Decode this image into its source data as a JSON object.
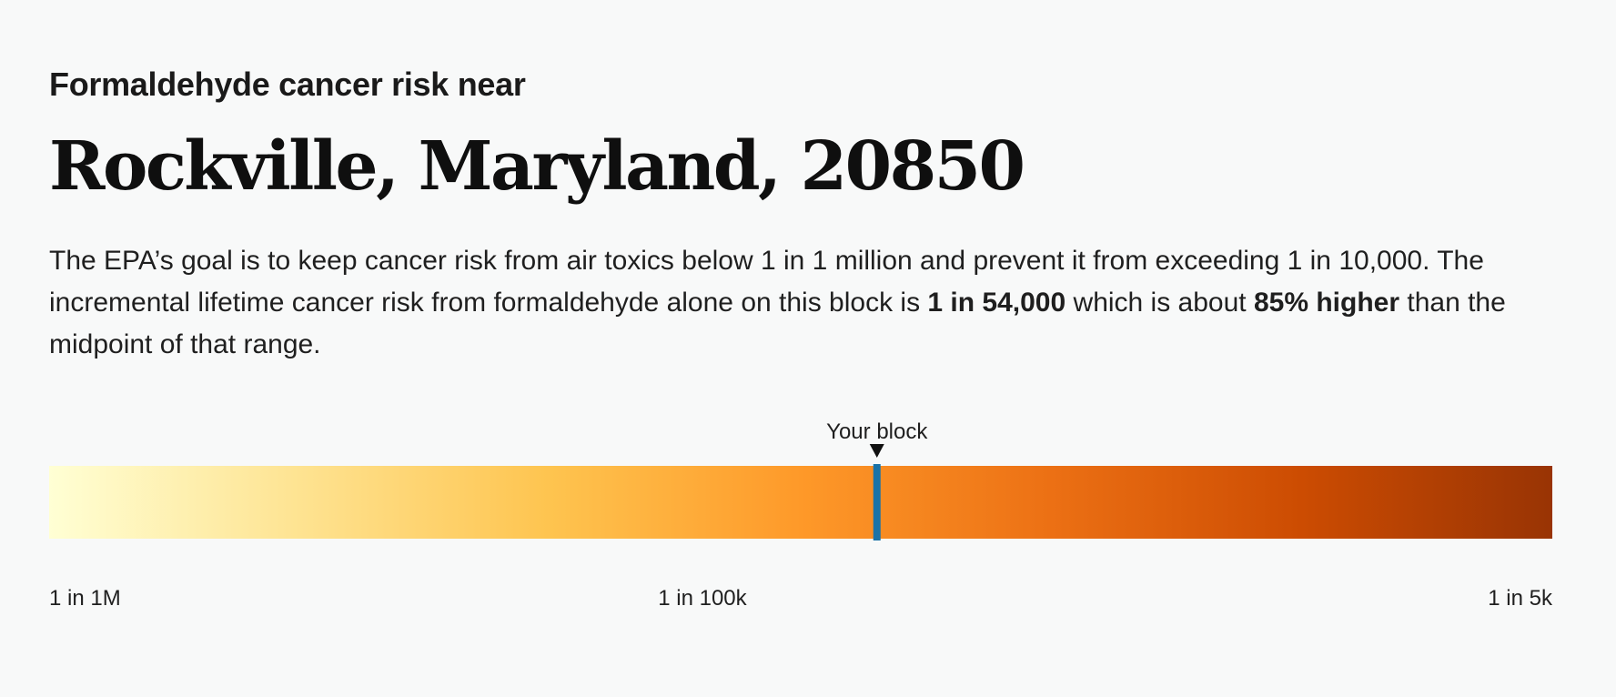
{
  "header": {
    "kicker": "Formaldehyde cancer risk near",
    "location": "Rockville, Maryland, 20850"
  },
  "description": {
    "part1": "The EPA’s goal is to keep cancer risk from air toxics below 1 in 1 million and prevent it from exceeding 1 in 10,000. The incremental lifetime cancer risk from formaldehyde alone on this block is ",
    "risk": "1 in 54,000",
    "part2": " which is about ",
    "comparison": "85% higher",
    "part3": " than the midpoint of that range."
  },
  "chart_data": {
    "type": "gradient-scale",
    "scale": "log",
    "range": [
      1e-06,
      0.0002
    ],
    "ticks": [
      {
        "label": "1 in 1M",
        "value": 1e-06
      },
      {
        "label": "1 in 100k",
        "value": 1e-05
      },
      {
        "label": "1 in 5k",
        "value": 0.0002
      }
    ],
    "marker": {
      "label": "Your block",
      "value": 1.85e-05
    },
    "colors": {
      "gradient": [
        "#ffffd4",
        "#fee391",
        "#fec44f",
        "#fe9929",
        "#ec7014",
        "#cc4c02",
        "#993404"
      ],
      "marker": "#1a73a8",
      "pointer": "#111111"
    }
  }
}
